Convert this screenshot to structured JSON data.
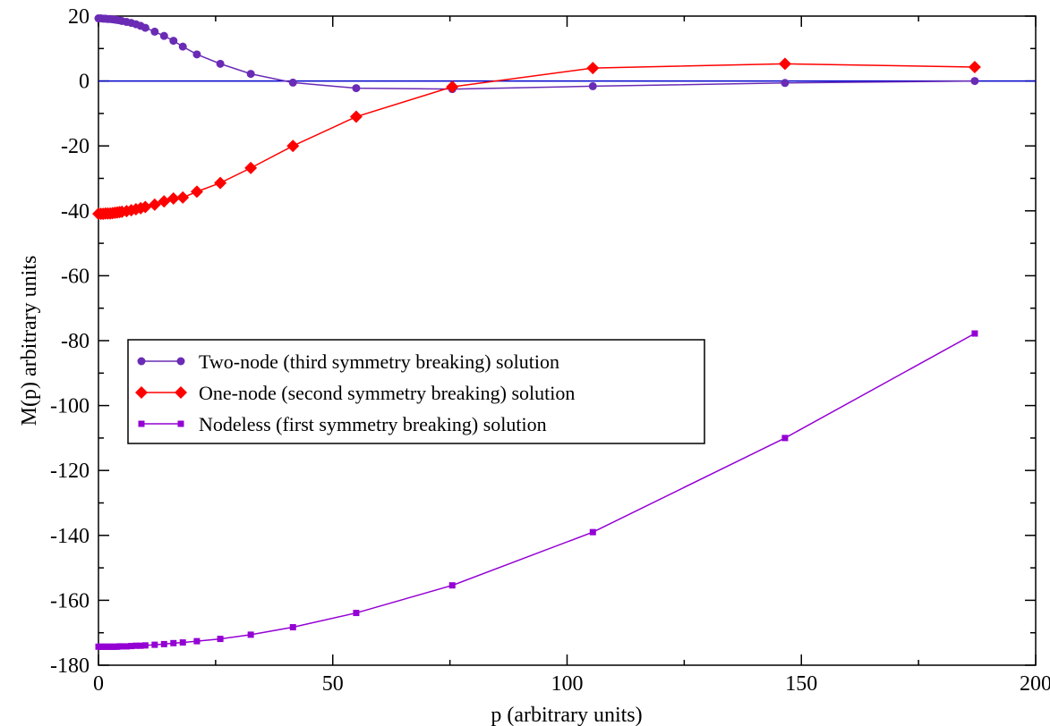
{
  "chart_data": {
    "type": "line",
    "title": "",
    "xlabel": "p (arbitrary units)",
    "ylabel": "M(p) arbitrary units",
    "xlim": [
      0,
      200
    ],
    "ylim": [
      -180,
      20
    ],
    "x_ticks": [
      0,
      50,
      100,
      150,
      200
    ],
    "x_tick_labels": [
      "0",
      "50",
      "100",
      "150",
      "200"
    ],
    "y_ticks": [
      20,
      0,
      -20,
      -40,
      -60,
      -80,
      -100,
      -120,
      -140,
      -160,
      -180
    ],
    "y_tick_labels": [
      "20",
      "0",
      "-20",
      "-40",
      "-60",
      "-80",
      "-100",
      "-120",
      "-140",
      "-160",
      "-180"
    ],
    "grid": false,
    "legend_position": "center-left",
    "reference_line": {
      "y": 0,
      "color": "#0000cc"
    },
    "series": [
      {
        "name": "Two-node (third symmetry breaking) solution",
        "color": "#6a2bb5",
        "marker": "circle",
        "x": [
          0,
          0.5,
          1,
          1.5,
          2,
          2.5,
          3,
          3.5,
          4,
          4.5,
          5,
          6,
          7,
          8,
          9,
          10,
          12,
          14,
          16,
          18,
          21,
          26,
          32.5,
          41.5,
          55,
          75.5,
          105.5,
          146.5,
          187
        ],
        "y": [
          19.3,
          19.3,
          19.2,
          19.2,
          19.1,
          19.1,
          19.0,
          18.9,
          18.8,
          18.7,
          18.5,
          18.2,
          17.9,
          17.5,
          17.0,
          16.4,
          15.2,
          13.9,
          12.4,
          10.6,
          8.2,
          5.3,
          2.2,
          -0.5,
          -2.2,
          -2.5,
          -1.6,
          -0.6,
          0.0
        ]
      },
      {
        "name": "One-node (second symmetry breaking) solution",
        "color": "#ff0000",
        "marker": "diamond",
        "x": [
          0,
          0.5,
          1,
          1.5,
          2,
          2.5,
          3,
          3.5,
          4,
          4.5,
          5,
          6,
          7,
          8,
          9,
          10,
          12,
          14,
          16,
          18,
          21,
          26,
          32.5,
          41.5,
          55,
          75.5,
          105.5,
          146.5,
          187
        ],
        "y": [
          -40.9,
          -40.9,
          -40.9,
          -40.8,
          -40.8,
          -40.8,
          -40.7,
          -40.6,
          -40.5,
          -40.4,
          -40.3,
          -40.1,
          -39.8,
          -39.5,
          -39.2,
          -38.8,
          -38.1,
          -37.1,
          -36.2,
          -35.9,
          -34.1,
          -31.4,
          -26.8,
          -20.0,
          -11.0,
          -1.8,
          4.0,
          5.3,
          4.3
        ]
      },
      {
        "name": "Nodeless (first symmetry breaking) solution",
        "color": "#9400d3",
        "marker": "square",
        "x": [
          0,
          0.5,
          1,
          1.5,
          2,
          2.5,
          3,
          3.5,
          4,
          4.5,
          5,
          6,
          7,
          8,
          9,
          10,
          12,
          14,
          16,
          18,
          21,
          26,
          32.5,
          41.5,
          55,
          75.5,
          105.5,
          146.5,
          187
        ],
        "y": [
          -174.3,
          -174.3,
          -174.3,
          -174.3,
          -174.3,
          -174.3,
          -174.3,
          -174.3,
          -174.3,
          -174.2,
          -174.2,
          -174.2,
          -174.1,
          -174.0,
          -174.0,
          -173.9,
          -173.7,
          -173.5,
          -173.2,
          -173.0,
          -172.6,
          -171.9,
          -170.6,
          -168.3,
          -163.9,
          -155.4,
          -139.0,
          -110.0,
          -77.8
        ]
      }
    ]
  }
}
